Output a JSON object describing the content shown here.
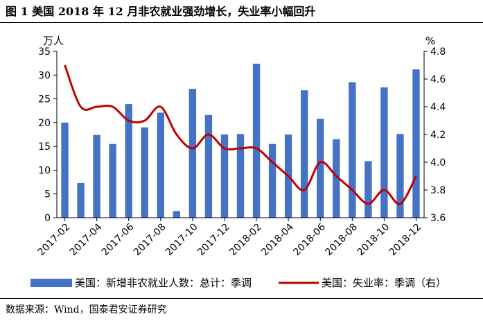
{
  "figure": {
    "title": "图 1 美国 2018 年 12 月非农就业强劲增长，失业率小幅回升",
    "source": "数据来源：Wind，国泰君安证券研究"
  },
  "chart_data": {
    "type": "bar",
    "title": "",
    "left_unit": "万人",
    "right_unit": "%",
    "categories": [
      "2017-02",
      "2017-03",
      "2017-04",
      "2017-05",
      "2017-06",
      "2017-07",
      "2017-08",
      "2017-09",
      "2017-10",
      "2017-11",
      "2017-12",
      "2018-01",
      "2018-02",
      "2018-03",
      "2018-04",
      "2018-05",
      "2018-06",
      "2018-07",
      "2018-08",
      "2018-09",
      "2018-10",
      "2018-11",
      "2018-12"
    ],
    "x_tick_labels": [
      "2017-02",
      "2017-04",
      "2017-06",
      "2017-08",
      "2017-10",
      "2017-12",
      "2018-02",
      "2018-04",
      "2018-06",
      "2018-08",
      "2018-10",
      "2018-12"
    ],
    "ylim_left": [
      0,
      35
    ],
    "yticks_left": [
      "0",
      "5",
      "10",
      "15",
      "20",
      "25",
      "30",
      "35"
    ],
    "ylim_right": [
      3.6,
      4.8
    ],
    "yticks_right": [
      "3.6",
      "3.8",
      "4.0",
      "4.2",
      "4.4",
      "4.6",
      "4.8"
    ],
    "grid": false,
    "legend_position": "bottom",
    "series": [
      {
        "name": "美国：新增非农就业人数：总计：季调",
        "type": "bar",
        "axis": "left",
        "color": "#4472c4",
        "values": [
          20.0,
          7.3,
          17.4,
          15.5,
          23.9,
          19.0,
          22.1,
          1.4,
          27.1,
          21.6,
          17.5,
          17.6,
          32.4,
          15.5,
          17.5,
          26.8,
          20.8,
          16.5,
          28.5,
          11.9,
          27.4,
          17.6,
          31.2
        ]
      },
      {
        "name": "美国：失业率：季调（右）",
        "type": "line",
        "axis": "right",
        "color": "#c00000",
        "values": [
          4.7,
          4.4,
          4.4,
          4.4,
          4.3,
          4.3,
          4.4,
          4.2,
          4.1,
          4.2,
          4.1,
          4.1,
          4.1,
          4.0,
          3.9,
          3.8,
          4.0,
          3.9,
          3.8,
          3.7,
          3.8,
          3.7,
          3.9
        ]
      }
    ]
  }
}
